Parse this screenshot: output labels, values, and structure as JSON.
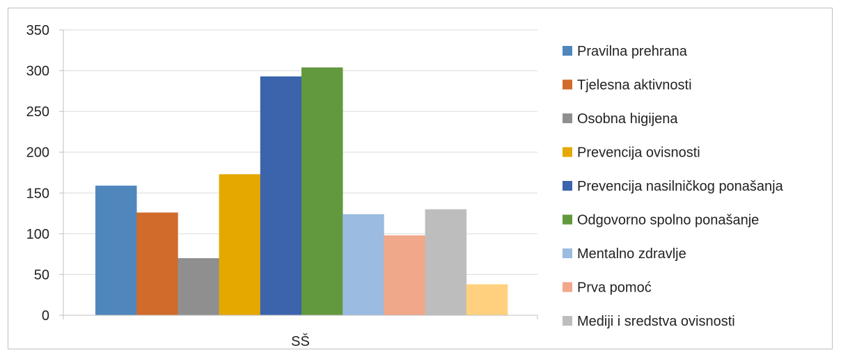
{
  "chart_data": {
    "type": "bar",
    "categories": [
      "SŠ"
    ],
    "ylim": [
      0,
      350
    ],
    "yticks": [
      0,
      50,
      100,
      150,
      200,
      250,
      300,
      350
    ],
    "grid": true,
    "legend_position": "right",
    "series": [
      {
        "name": "Pravilna prehrana",
        "values": [
          159
        ],
        "color": "#4f87bd"
      },
      {
        "name": "Tjelesna aktivnosti",
        "values": [
          126
        ],
        "color": "#d06b2a"
      },
      {
        "name": "Osobna higijena",
        "values": [
          70
        ],
        "color": "#8f8f8f"
      },
      {
        "name": "Prevencija ovisnosti",
        "values": [
          173
        ],
        "color": "#e5a800"
      },
      {
        "name": "Prevencija nasilničkog ponašanja",
        "values": [
          293
        ],
        "color": "#3b64ad"
      },
      {
        "name": "Odgovorno spolno ponašanje",
        "values": [
          304
        ],
        "color": "#62993e"
      },
      {
        "name": "Mentalno zdravlje",
        "values": [
          124
        ],
        "color": "#9bbbe0"
      },
      {
        "name": "Prva pomoć",
        "values": [
          98
        ],
        "color": "#f0a78a"
      },
      {
        "name": "Mediji i sredstva ovisnosti",
        "values": [
          130
        ],
        "color": "#bdbdbd"
      },
      {
        "name": "",
        "values": [
          38
        ],
        "color": "#ffd17f"
      }
    ]
  }
}
